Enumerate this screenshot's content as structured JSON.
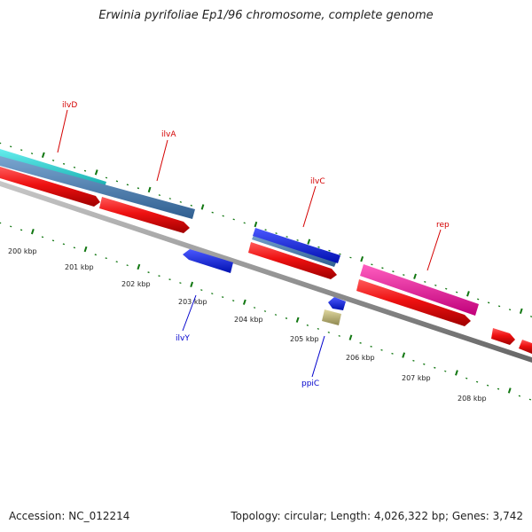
{
  "title": "Erwinia pyrifoliae Ep1/96 chromosome, complete genome",
  "footer": {
    "accession": "Accession: NC_012214",
    "summary": "Topology: circular; Length: 4,026,322 bp; Genes: 3,742"
  },
  "axis_labels": [
    "200 kbp",
    "201 kbp",
    "202 kbp",
    "203 kbp",
    "204 kbp",
    "205 kbp",
    "206 kbp",
    "207 kbp",
    "208 kbp"
  ],
  "genes": [
    {
      "name": "ilvD",
      "color": "#d40000"
    },
    {
      "name": "ilvA",
      "color": "#d40000"
    },
    {
      "name": "ilvC",
      "color": "#d40000"
    },
    {
      "name": "rep",
      "color": "#d40000"
    },
    {
      "name": "ilvY",
      "color": "#0000cc"
    },
    {
      "name": "ppiC",
      "color": "#0000cc"
    }
  ],
  "colors": {
    "cds": "#ee1111",
    "cds_dark": "#a00000",
    "backbone": "#888888",
    "ticks": "#117711",
    "cyan": "#22cccc",
    "steelblue": "#4f7fb0",
    "blue": "#0a1ae0",
    "magenta": "#e6179a",
    "khaki": "#c8c080"
  }
}
